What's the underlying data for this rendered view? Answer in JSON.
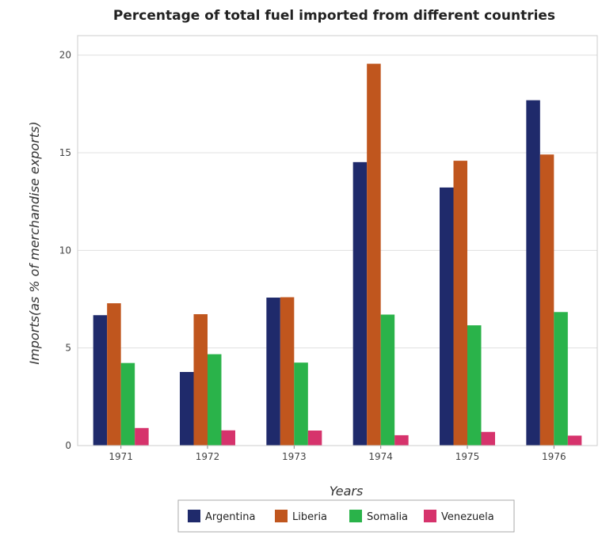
{
  "chart_data": {
    "type": "bar",
    "title": "Percentage of total fuel imported from different countries",
    "xlabel": "Years",
    "ylabel": "Imports(as % of merchandise exports)",
    "categories": [
      "1971",
      "1972",
      "1973",
      "1974",
      "1975",
      "1976"
    ],
    "ylim": [
      0,
      21
    ],
    "yticks": [
      "0",
      "5",
      "10",
      "15",
      "20"
    ],
    "grid": true,
    "legend_position": "bottom-center",
    "series": [
      {
        "name": "Argentina",
        "color": "#1f2a6b",
        "values": [
          6.68,
          3.77,
          7.58,
          14.52,
          13.22,
          17.69
        ]
      },
      {
        "name": "Liberia",
        "color": "#c0561e",
        "values": [
          7.29,
          6.73,
          7.6,
          19.56,
          14.59,
          14.91
        ]
      },
      {
        "name": "Somalia",
        "color": "#2ab34a",
        "values": [
          4.23,
          4.68,
          4.25,
          6.71,
          6.16,
          6.84
        ]
      },
      {
        "name": "Venezuela",
        "color": "#d6336c",
        "values": [
          0.9,
          0.78,
          0.77,
          0.53,
          0.7,
          0.51
        ]
      }
    ]
  }
}
